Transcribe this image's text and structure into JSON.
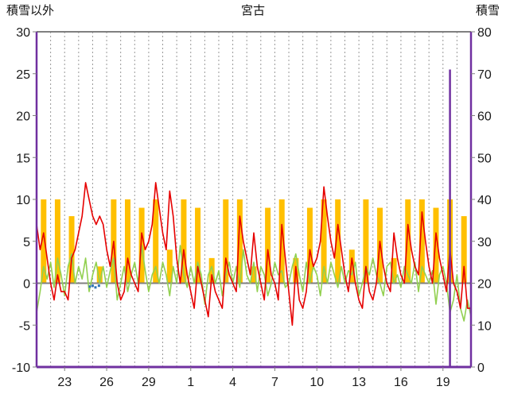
{
  "chart_data": {
    "type": "line",
    "title": "宮古",
    "left_axis": {
      "label": "積雪以外",
      "min": -10,
      "max": 30,
      "ticks": [
        30,
        25,
        20,
        15,
        10,
        5,
        0,
        -5,
        -10
      ]
    },
    "right_axis": {
      "label": "積雪",
      "min": 0,
      "max": 80,
      "ticks": [
        80,
        70,
        60,
        50,
        40,
        30,
        20,
        10,
        0
      ]
    },
    "x_axis": {
      "domain": [
        0,
        31
      ],
      "tick_positions": [
        2,
        5,
        8,
        11,
        14,
        17,
        20,
        23,
        26,
        29
      ],
      "tick_labels": [
        "23",
        "26",
        "29",
        "1",
        "4",
        "7",
        "10",
        "13",
        "16",
        "19"
      ],
      "gridline_every_day": true
    },
    "colors": {
      "red": "#e60000",
      "green": "#92d050",
      "orange": "#ffc000",
      "purple": "#7030a0",
      "gray_axis": "#808080",
      "grid": "#999999",
      "text": "#1a1a1a"
    },
    "series": [
      {
        "name": "red-series",
        "color": "#e60000",
        "step": 0.25,
        "values": [
          7,
          4,
          6,
          3,
          0,
          -2,
          1,
          -1,
          -1,
          -2,
          3,
          4,
          6,
          8,
          12,
          10,
          8,
          7,
          8,
          7,
          4,
          2,
          5,
          0,
          -2,
          -1,
          3,
          1,
          0,
          -1,
          6,
          4,
          5,
          7,
          12,
          9,
          6,
          4,
          11,
          8,
          3,
          0,
          4,
          1,
          -1,
          -3,
          2,
          0,
          -2,
          -4,
          1,
          -1,
          -2,
          -3,
          3,
          1,
          0,
          -1,
          8,
          5,
          3,
          1,
          6,
          2,
          0,
          -2,
          4,
          1,
          0,
          -2,
          7,
          3,
          -1,
          -5,
          2,
          -2,
          -3,
          -1,
          4,
          2,
          3,
          5,
          11.5,
          8,
          5,
          3,
          7,
          4,
          1,
          -1,
          3,
          0,
          -2,
          -3,
          2,
          -1,
          -2,
          0,
          5,
          2,
          0,
          -1,
          6,
          3,
          1,
          0,
          7,
          4,
          2,
          1,
          8.5,
          5,
          2,
          0,
          6,
          3,
          1,
          -1,
          4,
          0,
          -1,
          -3,
          2,
          -3,
          -3
        ]
      },
      {
        "name": "green-series",
        "color": "#92d050",
        "step": 0.25,
        "values": [
          -3.5,
          -1,
          2,
          0.5,
          2.5,
          -0.5,
          3,
          1,
          -1.5,
          2,
          3.5,
          0,
          2,
          0.5,
          3,
          -1,
          1,
          2.5,
          0,
          2,
          -0.5,
          1.5,
          3,
          -2,
          0,
          2,
          -1,
          1,
          2.5,
          0,
          4.5,
          1.5,
          -1,
          1,
          2,
          0,
          2.5,
          1,
          -1.5,
          2,
          0,
          4.5,
          1,
          -0.5,
          2,
          0,
          2.5,
          1,
          -2.5,
          1,
          2,
          0,
          1.5,
          -1.5,
          1,
          2.5,
          0,
          2,
          -0.5,
          4,
          1,
          0,
          2.5,
          -1,
          2,
          1,
          -1.5,
          0,
          2.5,
          1,
          1.5,
          -0.5,
          0,
          2,
          3.5,
          1,
          -1,
          2.5,
          0,
          2,
          1,
          -1.5,
          2,
          0,
          2.5,
          1,
          -0.5,
          2,
          0,
          1.5,
          1,
          2.5,
          -1.5,
          0,
          2,
          1,
          3,
          1,
          0,
          -1.5,
          2,
          2.5,
          0,
          1,
          -0.5,
          2,
          1,
          0,
          2.5,
          -1,
          2,
          1,
          0,
          1.5,
          -2.5,
          1,
          2,
          0,
          -3.5,
          -2,
          1,
          -3,
          -4.5,
          -2,
          -4
        ]
      }
    ],
    "sunshine_bars": {
      "name": "orange-bars",
      "color": "#ffc000",
      "day_heights": [
        10,
        10,
        8,
        0,
        2,
        10,
        10,
        9,
        10,
        4,
        10,
        9,
        3,
        10,
        10,
        2,
        9,
        10,
        3,
        9,
        10,
        10,
        4,
        10,
        9,
        3,
        10,
        10,
        9,
        10,
        8
      ]
    },
    "precip_marks": {
      "name": "blue-marks",
      "color": "#2e75b6",
      "points": [
        {
          "day": 3.8,
          "value": -0.4
        },
        {
          "day": 4.0,
          "value": -0.3
        },
        {
          "day": 4.2,
          "value": -0.5
        },
        {
          "day": 4.45,
          "value": -0.3
        }
      ]
    },
    "snow_series": {
      "name": "purple-snow",
      "color": "#7030a0",
      "baseline_right_value": 0,
      "spike": {
        "day": 29.5,
        "right_value": 71
      }
    }
  }
}
